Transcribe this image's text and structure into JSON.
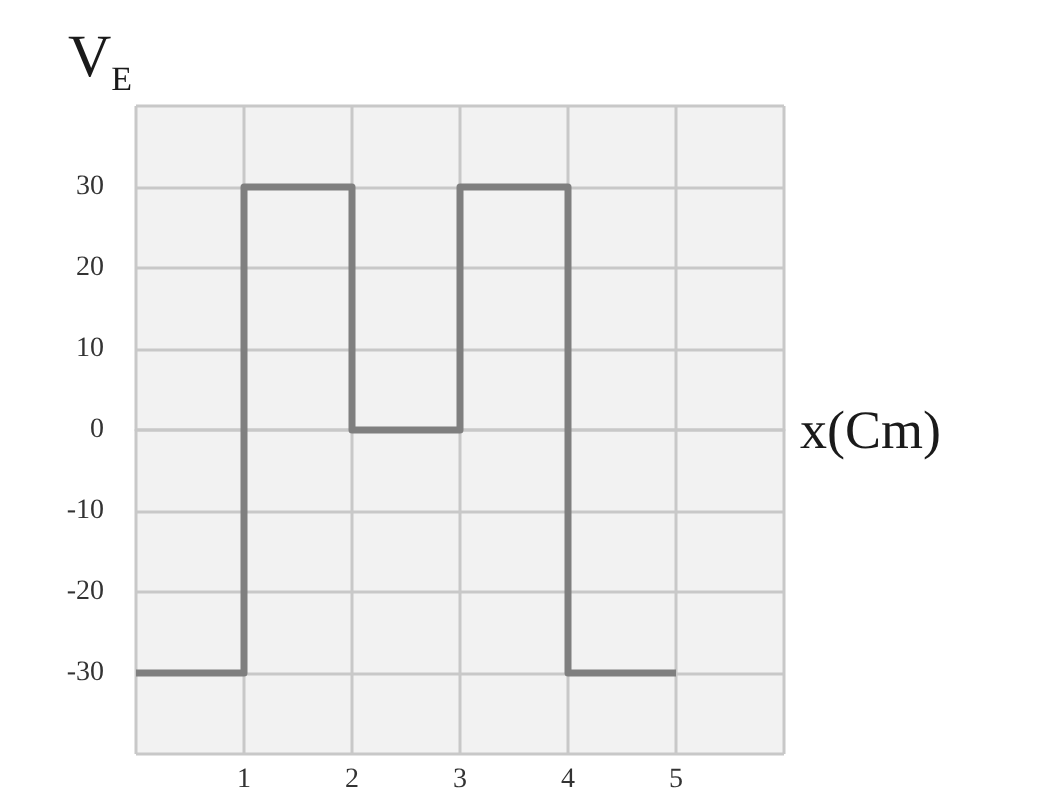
{
  "chart_data": {
    "type": "step",
    "xlabel": "x(Cm)",
    "ylabel": "V$_{E}$",
    "x": [
      0,
      1,
      2,
      3,
      4,
      5
    ],
    "series": [
      {
        "color": "#7f7f7f",
        "values": [
          -30,
          30,
          0,
          30,
          -30,
          -30
        ]
      }
    ],
    "xlim": [
      0,
      6
    ],
    "xticks": [
      {
        "value": 0,
        "label": null
      },
      1,
      2,
      3,
      4,
      5,
      {
        "value": 6,
        "label": null
      }
    ],
    "ylim": [
      -40,
      40
    ],
    "yticks": [
      {
        "value": -40,
        "label": null
      },
      -30,
      -20,
      -10,
      0,
      10,
      20,
      30,
      {
        "value": 40,
        "label": null
      }
    ],
    "grid": true,
    "marker": "none",
    "line_style": "solid"
  }
}
